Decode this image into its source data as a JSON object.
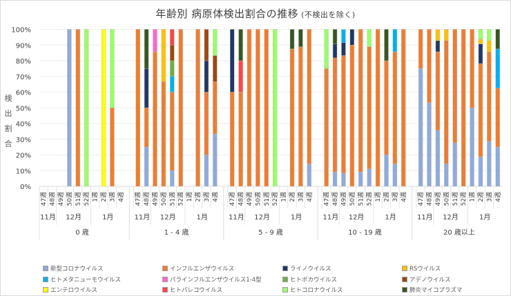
{
  "chart_data": {
    "type": "bar",
    "stacked": true,
    "percent_stacked": true,
    "title": "年齢別 病原体検出割合の推移",
    "subtitle": "(不検出を除く)",
    "ylabel": "検出割合",
    "ylim": [
      0,
      100
    ],
    "yticks": [
      "0%",
      "10%",
      "20%",
      "30%",
      "40%",
      "50%",
      "60%",
      "70%",
      "80%",
      "90%",
      "100%"
    ],
    "grid": true,
    "legend_position": "bottom",
    "week_labels": [
      "47週",
      "48週",
      "49週",
      "50週",
      "51週",
      "52週",
      "1週",
      "2週",
      "3週",
      "4週"
    ],
    "month_labels": [
      {
        "label": "11月",
        "weeks": 2
      },
      {
        "label": "12月",
        "weeks": 4
      },
      {
        "label": "1月",
        "weeks": 4
      }
    ],
    "groups": [
      "0 歳",
      "1 - 4 歳",
      "5 - 9 歳",
      "10 - 19 歳",
      "20 歳以上"
    ],
    "series": [
      {
        "name": "新型コロナウイルス",
        "color": "#8faadc"
      },
      {
        "name": "インフルエンザウイルス",
        "color": "#ed7d31"
      },
      {
        "name": "ライノウイルス",
        "color": "#203864"
      },
      {
        "name": "RSウイルス",
        "color": "#ffc000"
      },
      {
        "name": "ヒトメタニューモウイルス",
        "color": "#00b0f0"
      },
      {
        "name": "パラインフルエンザウイルス1-4型",
        "color": "#ff66cc"
      },
      {
        "name": "ヒトボカウイルス",
        "color": "#70ad47"
      },
      {
        "name": "アデノウイルス",
        "color": "#9e480e"
      },
      {
        "name": "エンテロウイルス",
        "color": "#ffff00"
      },
      {
        "name": "ヒトパレコウイルス",
        "color": "#ff4343"
      },
      {
        "name": "ヒトコロナウイルス",
        "color": "#99ff66"
      },
      {
        "name": "肺炎マイコプラズマ",
        "color": "#375623"
      }
    ],
    "values_note": "values[group][week] = percentage per series in legend order; empty array = no detections",
    "values": [
      [
        [],
        [],
        [],
        [
          100,
          0,
          0,
          0,
          0,
          0,
          0,
          0,
          0,
          0,
          0,
          0
        ],
        [
          0,
          100,
          0,
          0,
          0,
          0,
          0,
          0,
          0,
          0,
          0,
          0
        ],
        [
          0,
          0,
          0,
          0,
          0,
          0,
          0,
          0,
          0,
          0,
          100,
          0
        ],
        [],
        [
          0,
          0,
          0,
          0,
          0,
          0,
          0,
          0,
          100,
          0,
          0,
          0
        ],
        [
          0,
          50,
          0,
          0,
          0,
          0,
          0,
          0,
          0,
          0,
          50,
          0
        ],
        []
      ],
      [
        [
          0,
          100,
          0,
          0,
          0,
          0,
          0,
          0,
          0,
          0,
          0,
          0
        ],
        [
          25,
          25,
          25,
          0,
          0,
          0,
          0,
          0,
          0,
          0,
          0,
          25
        ],
        [
          0,
          85.7,
          0,
          0,
          0,
          14.3,
          0,
          0,
          0,
          0,
          0,
          0
        ],
        [
          0,
          66.7,
          0,
          33.3,
          0,
          0,
          0,
          0,
          0,
          0,
          0,
          0
        ],
        [
          10,
          50,
          0,
          0,
          10,
          0,
          10,
          10,
          0,
          10,
          0,
          0
        ],
        [
          0,
          100,
          0,
          0,
          0,
          0,
          0,
          0,
          0,
          0,
          0,
          0
        ],
        [],
        [
          0,
          100,
          0,
          0,
          0,
          0,
          0,
          0,
          0,
          0,
          0,
          0
        ],
        [
          20,
          40,
          20,
          0,
          0,
          0,
          0,
          20,
          0,
          0,
          0,
          0
        ],
        [
          33.3,
          33.3,
          0,
          0,
          0,
          0,
          0,
          16.7,
          0,
          0,
          16.7,
          0
        ]
      ],
      [
        [
          0,
          60,
          40,
          0,
          0,
          0,
          0,
          0,
          0,
          0,
          0,
          0
        ],
        [
          0,
          60,
          0,
          0,
          0,
          0,
          0,
          0,
          0,
          20,
          0,
          20
        ],
        [
          0,
          100,
          0,
          0,
          0,
          0,
          0,
          0,
          0,
          0,
          0,
          0
        ],
        [
          0,
          100,
          0,
          0,
          0,
          0,
          0,
          0,
          0,
          0,
          0,
          0
        ],
        [
          0,
          100,
          0,
          0,
          0,
          0,
          0,
          0,
          0,
          0,
          0,
          0
        ],
        [
          0,
          0,
          0,
          0,
          0,
          0,
          0,
          0,
          0,
          0,
          100,
          0
        ],
        [],
        [
          0,
          87.5,
          0,
          0,
          0,
          0,
          0,
          0,
          0,
          0,
          0,
          12.5
        ],
        [
          0,
          88.9,
          0,
          0,
          0,
          0,
          0,
          0,
          0,
          0,
          0,
          11.1
        ],
        [
          14.3,
          85.7,
          0,
          0,
          0,
          0,
          0,
          0,
          0,
          0,
          0,
          0
        ]
      ],
      [
        [
          0,
          75,
          0,
          0,
          0,
          0,
          0,
          0,
          0,
          0,
          25,
          0
        ],
        [
          9.1,
          72.7,
          9.1,
          0,
          0,
          0,
          0,
          0,
          0,
          0,
          0,
          9.1
        ],
        [
          8.3,
          75,
          8.3,
          0,
          8.3,
          0,
          0,
          0,
          0,
          0,
          0,
          0
        ],
        [
          0,
          90,
          10,
          0,
          0,
          0,
          0,
          0,
          0,
          0,
          0,
          0
        ],
        [
          9.1,
          90.9,
          0,
          0,
          0,
          0,
          0,
          0,
          0,
          0,
          0,
          0
        ],
        [
          11.1,
          77.8,
          0,
          0,
          0,
          0,
          0,
          0,
          0,
          0,
          11.1,
          0
        ],
        [
          0,
          100,
          0,
          0,
          0,
          0,
          0,
          0,
          0,
          0,
          0,
          0
        ],
        [
          20,
          60,
          0,
          0,
          0,
          0,
          0,
          0,
          0,
          0,
          0,
          20
        ],
        [
          14.3,
          71.4,
          0,
          0,
          14.3,
          0,
          0,
          0,
          0,
          0,
          0,
          0
        ],
        [
          0,
          100,
          0,
          0,
          0,
          0,
          0,
          0,
          0,
          0,
          0,
          0
        ]
      ],
      [
        [
          75,
          25,
          0,
          0,
          0,
          0,
          0,
          0,
          0,
          0,
          0,
          0
        ],
        [
          53.3,
          46.7,
          0,
          0,
          0,
          0,
          0,
          0,
          0,
          0,
          0,
          0
        ],
        [
          35.7,
          50,
          7.1,
          7.1,
          0,
          0,
          0,
          0,
          0,
          0,
          0,
          0
        ],
        [
          14.3,
          78.6,
          0,
          7.1,
          0,
          0,
          0,
          0,
          0,
          0,
          0,
          0
        ],
        [
          27.8,
          72.2,
          0,
          0,
          0,
          0,
          0,
          0,
          0,
          0,
          0,
          0
        ],
        [
          0,
          100,
          0,
          0,
          0,
          0,
          0,
          0,
          0,
          0,
          0,
          0
        ],
        [
          50,
          50,
          0,
          0,
          0,
          0,
          0,
          0,
          0,
          0,
          0,
          0
        ],
        [
          18.8,
          59.4,
          12.5,
          3.1,
          0,
          0,
          0,
          0,
          0,
          0,
          6.3,
          0
        ],
        [
          28.6,
          57.1,
          0,
          7.1,
          0,
          0,
          0,
          0,
          0,
          0,
          7.1,
          0
        ],
        [
          25,
          37.5,
          0,
          0,
          25,
          0,
          0,
          0,
          0,
          0,
          0,
          12.5
        ]
      ]
    ]
  }
}
